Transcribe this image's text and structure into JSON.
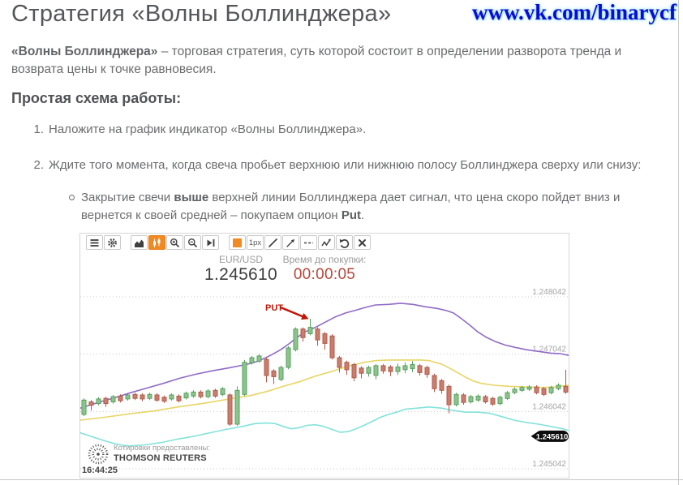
{
  "page": {
    "title": "Стратегия «Волны Боллинджера»",
    "watermark": "www.vk.com/binarycf",
    "intro": {
      "bold": "«Волны Боллинджера»",
      "rest": " – торговая стратегия, суть которой состоит в определении разворота тренда и возврата цены к точке равновесия."
    },
    "subheading": "Простая схема работы:",
    "steps": [
      {
        "num": "1.",
        "text": "Наложите на график индикатор «Волны Боллинджера»."
      },
      {
        "num": "2.",
        "text": "Ждите того момента, когда свеча пробьет верхнюю или нижнюю полосу Боллинджера сверху или снизу:"
      }
    ],
    "substep": {
      "pre": "Закрытие свечи ",
      "bold1": "выше",
      "mid": " верхней линии Боллинджера дает сигнал, что цена скоро пойдет вниз и вернется к своей средней – покупаем опцион ",
      "bold2": "Put",
      "post": "."
    }
  },
  "platform": {
    "toolbar": {
      "stroke_width_label": "1px",
      "accent_color": "#f28a24"
    },
    "header": {
      "pair_label": "EUR/USD",
      "price": "1.245610",
      "timer_label": "Время до покупки:",
      "timer": "00:00:05"
    },
    "footer": {
      "quotes_label": "Котировки предоставлены:",
      "provider": "THOMSON REUTERS",
      "time": "16:44:25"
    }
  },
  "chart_data": {
    "type": "candlestick",
    "symbol": "EUR/USD",
    "current_price": 1.24561,
    "current_price_label": "1.245610",
    "y_axis": {
      "price_range": [
        1.248042,
        1.245042
      ],
      "y_range": [
        78,
        290
      ],
      "ticks": [
        {
          "price": 1.248042,
          "label": "1.248042"
        },
        {
          "price": 1.247042,
          "label": "1.247042"
        },
        {
          "price": 1.246042,
          "label": "1.246042"
        },
        {
          "price": 1.245042,
          "label": "1.245042"
        }
      ]
    },
    "colors": {
      "bull": "#57a05d",
      "bull_fill": "#8dc48d",
      "bear": "#b05a49",
      "bear_fill": "#cb7d6d",
      "band_upper": "#8f6bc7",
      "band_middle": "#e8d564",
      "band_lower": "#82e3da",
      "annotation": "#c11607",
      "tag_bg": "#0d0d0d"
    },
    "annotation": {
      "label": "PUT",
      "x": 228,
      "y": 95,
      "arrow": [
        247,
        91,
        276,
        103
      ]
    },
    "bands": [
      {
        "name": "bollinger-upper",
        "color": "#8f6bc7",
        "points": [
          [
            0,
            1.2461
          ],
          [
            22,
            1.2462
          ],
          [
            42,
            1.24628
          ],
          [
            62,
            1.24637
          ],
          [
            82,
            1.24645
          ],
          [
            102,
            1.24653
          ],
          [
            122,
            1.24662
          ],
          [
            142,
            1.24669
          ],
          [
            162,
            1.24675
          ],
          [
            182,
            1.2468
          ],
          [
            197,
            1.24684
          ],
          [
            207,
            1.24687
          ],
          [
            217,
            1.24691
          ],
          [
            227,
            1.24697
          ],
          [
            237,
            1.24704
          ],
          [
            247,
            1.24712
          ],
          [
            257,
            1.24722
          ],
          [
            267,
            1.24733
          ],
          [
            277,
            1.24743
          ],
          [
            290,
            1.24751
          ],
          [
            302,
            1.2476
          ],
          [
            314,
            1.24769
          ],
          [
            327,
            1.24776
          ],
          [
            340,
            1.24781
          ],
          [
            352,
            1.24786
          ],
          [
            364,
            1.2479
          ],
          [
            380,
            1.24791
          ],
          [
            395,
            1.24793
          ],
          [
            410,
            1.24791
          ],
          [
            425,
            1.24787
          ],
          [
            440,
            1.24784
          ],
          [
            452,
            1.2478
          ],
          [
            460,
            1.24776
          ],
          [
            470,
            1.24766
          ],
          [
            480,
            1.24755
          ],
          [
            490,
            1.24743
          ],
          [
            500,
            1.24734
          ],
          [
            512,
            1.24726
          ],
          [
            524,
            1.2472
          ],
          [
            536,
            1.24716
          ],
          [
            550,
            1.24712
          ],
          [
            565,
            1.24709
          ],
          [
            580,
            1.24706
          ],
          [
            592,
            1.24705
          ],
          [
            602,
            1.24702
          ]
        ]
      },
      {
        "name": "bollinger-middle",
        "color": "#e8d564",
        "points": [
          [
            0,
            1.24589
          ],
          [
            30,
            1.24594
          ],
          [
            60,
            1.246
          ],
          [
            90,
            1.24605
          ],
          [
            120,
            1.24612
          ],
          [
            150,
            1.24618
          ],
          [
            180,
            1.24625
          ],
          [
            210,
            1.24632
          ],
          [
            230,
            1.24639
          ],
          [
            250,
            1.24648
          ],
          [
            270,
            1.24656
          ],
          [
            290,
            1.24666
          ],
          [
            310,
            1.24674
          ],
          [
            330,
            1.24683
          ],
          [
            350,
            1.2469
          ],
          [
            365,
            1.24693
          ],
          [
            380,
            1.24694
          ],
          [
            400,
            1.24694
          ],
          [
            420,
            1.24694
          ],
          [
            430,
            1.24693
          ],
          [
            445,
            1.24687
          ],
          [
            455,
            1.2468
          ],
          [
            465,
            1.24672
          ],
          [
            475,
            1.24664
          ],
          [
            485,
            1.24657
          ],
          [
            495,
            1.24653
          ],
          [
            510,
            1.2465
          ],
          [
            530,
            1.24648
          ],
          [
            550,
            1.24647
          ],
          [
            570,
            1.24646
          ],
          [
            585,
            1.24647
          ],
          [
            602,
            1.2465
          ]
        ]
      },
      {
        "name": "bollinger-lower",
        "color": "#82e3da",
        "points": [
          [
            0,
            1.24567
          ],
          [
            15,
            1.2456
          ],
          [
            30,
            1.24553
          ],
          [
            45,
            1.24547
          ],
          [
            60,
            1.24544
          ],
          [
            80,
            1.24546
          ],
          [
            100,
            1.2455
          ],
          [
            120,
            1.24556
          ],
          [
            140,
            1.24561
          ],
          [
            160,
            1.24567
          ],
          [
            180,
            1.24573
          ],
          [
            200,
            1.24578
          ],
          [
            215,
            1.24583
          ],
          [
            230,
            1.24584
          ],
          [
            240,
            1.24583
          ],
          [
            250,
            1.24578
          ],
          [
            260,
            1.24574
          ],
          [
            270,
            1.24576
          ],
          [
            280,
            1.2458
          ],
          [
            290,
            1.24581
          ],
          [
            300,
            1.24578
          ],
          [
            310,
            1.24573
          ],
          [
            320,
            1.24568
          ],
          [
            330,
            1.24569
          ],
          [
            340,
            1.24574
          ],
          [
            350,
            1.2458
          ],
          [
            360,
            1.24587
          ],
          [
            370,
            1.24594
          ],
          [
            380,
            1.24599
          ],
          [
            390,
            1.24603
          ],
          [
            400,
            1.24608
          ],
          [
            415,
            1.2461
          ],
          [
            430,
            1.24612
          ],
          [
            445,
            1.2461
          ],
          [
            460,
            1.24606
          ],
          [
            475,
            1.24603
          ],
          [
            490,
            1.24603
          ],
          [
            505,
            1.24601
          ],
          [
            520,
            1.24595
          ],
          [
            535,
            1.24589
          ],
          [
            550,
            1.24585
          ],
          [
            565,
            1.24582
          ],
          [
            580,
            1.24578
          ],
          [
            595,
            1.24574
          ],
          [
            602,
            1.24571
          ]
        ]
      }
    ],
    "candles": [
      [
        1.24599,
        1.24627,
        1.24596,
        1.24624
      ],
      [
        1.24621,
        1.24624,
        1.24606,
        1.24615
      ],
      [
        1.24618,
        1.24629,
        1.24615,
        1.24626
      ],
      [
        1.24627,
        1.2463,
        1.24612,
        1.24618
      ],
      [
        1.24621,
        1.24633,
        1.24618,
        1.2463
      ],
      [
        1.24631,
        1.24634,
        1.2462,
        1.24623
      ],
      [
        1.24626,
        1.24636,
        1.24623,
        1.24633
      ],
      [
        1.24634,
        1.24637,
        1.24624,
        1.24627
      ],
      [
        1.24633,
        1.24636,
        1.24622,
        1.24626
      ],
      [
        1.24627,
        1.24637,
        1.24624,
        1.24634
      ],
      [
        1.24633,
        1.24636,
        1.24621,
        1.24624
      ],
      [
        1.24629,
        1.24632,
        1.24619,
        1.24622
      ],
      [
        1.24626,
        1.24636,
        1.24623,
        1.24633
      ],
      [
        1.24631,
        1.24634,
        1.2462,
        1.24623
      ],
      [
        1.24628,
        1.24639,
        1.24625,
        1.24636
      ],
      [
        1.24631,
        1.24641,
        1.24628,
        1.24638
      ],
      [
        1.24638,
        1.24641,
        1.24627,
        1.2463
      ],
      [
        1.2463,
        1.24643,
        1.24627,
        1.2464
      ],
      [
        1.24641,
        1.24644,
        1.24628,
        1.24631
      ],
      [
        1.24634,
        1.24647,
        1.24631,
        1.24644
      ],
      [
        1.24633,
        1.24636,
        1.24579,
        1.24582
      ],
      [
        1.24582,
        1.24648,
        1.24579,
        1.24641
      ],
      [
        1.24634,
        1.24694,
        1.24631,
        1.2469
      ],
      [
        1.24689,
        1.24701,
        1.24686,
        1.24698
      ],
      [
        1.24692,
        1.24704,
        1.24689,
        1.24701
      ],
      [
        1.24695,
        1.24698,
        1.24655,
        1.24667
      ],
      [
        1.24675,
        1.24678,
        1.24652,
        1.24665
      ],
      [
        1.2466,
        1.24684,
        1.24657,
        1.24681
      ],
      [
        1.24681,
        1.24718,
        1.24678,
        1.24715
      ],
      [
        1.24712,
        1.24751,
        1.24709,
        1.24748
      ],
      [
        1.24748,
        1.24751,
        1.24726,
        1.24733
      ],
      [
        1.2474,
        1.24766,
        1.24737,
        1.24751
      ],
      [
        1.24748,
        1.24751,
        1.24719,
        1.24729
      ],
      [
        1.2474,
        1.24743,
        1.24712,
        1.24723
      ],
      [
        1.24736,
        1.24739,
        1.24695,
        1.24698
      ],
      [
        1.24698,
        1.24701,
        1.24672,
        1.24681
      ],
      [
        1.2469,
        1.24693,
        1.24668,
        1.24677
      ],
      [
        1.24686,
        1.24689,
        1.24657,
        1.24663
      ],
      [
        1.2468,
        1.24683,
        1.24662,
        1.24671
      ],
      [
        1.24671,
        1.24684,
        1.24665,
        1.24681
      ],
      [
        1.24667,
        1.24687,
        1.2466,
        1.24684
      ],
      [
        1.24684,
        1.24687,
        1.2467,
        1.24675
      ],
      [
        1.24682,
        1.24685,
        1.24666,
        1.24674
      ],
      [
        1.24674,
        1.24688,
        1.24668,
        1.24682
      ],
      [
        1.24677,
        1.2469,
        1.24671,
        1.24684
      ],
      [
        1.24679,
        1.24692,
        1.24673,
        1.24686
      ],
      [
        1.24684,
        1.24687,
        1.24667,
        1.24672
      ],
      [
        1.24681,
        1.24684,
        1.24663,
        1.24669
      ],
      [
        1.24667,
        1.2467,
        1.24638,
        1.24644
      ],
      [
        1.24658,
        1.24661,
        1.24635,
        1.24641
      ],
      [
        1.24648,
        1.24651,
        1.24601,
        1.24616
      ],
      [
        1.24616,
        1.24637,
        1.24613,
        1.24634
      ],
      [
        1.24633,
        1.24636,
        1.24616,
        1.2462
      ],
      [
        1.24621,
        1.24633,
        1.24618,
        1.2463
      ],
      [
        1.24624,
        1.24634,
        1.24621,
        1.24631
      ],
      [
        1.2463,
        1.24633,
        1.24618,
        1.24621
      ],
      [
        1.24627,
        1.2463,
        1.24614,
        1.24617
      ],
      [
        1.24618,
        1.24632,
        1.24615,
        1.24629
      ],
      [
        1.24627,
        1.2464,
        1.24624,
        1.24637
      ],
      [
        1.24637,
        1.24646,
        1.24634,
        1.24643
      ],
      [
        1.24641,
        1.24649,
        1.24638,
        1.24646
      ],
      [
        1.24643,
        1.2465,
        1.2464,
        1.24647
      ],
      [
        1.24647,
        1.2465,
        1.24634,
        1.24637
      ],
      [
        1.24644,
        1.24647,
        1.24631,
        1.24634
      ],
      [
        1.24637,
        1.24649,
        1.24634,
        1.24646
      ],
      [
        1.24644,
        1.24653,
        1.24641,
        1.2465
      ],
      [
        1.24648,
        1.24677,
        1.24635,
        1.24638
      ]
    ]
  }
}
